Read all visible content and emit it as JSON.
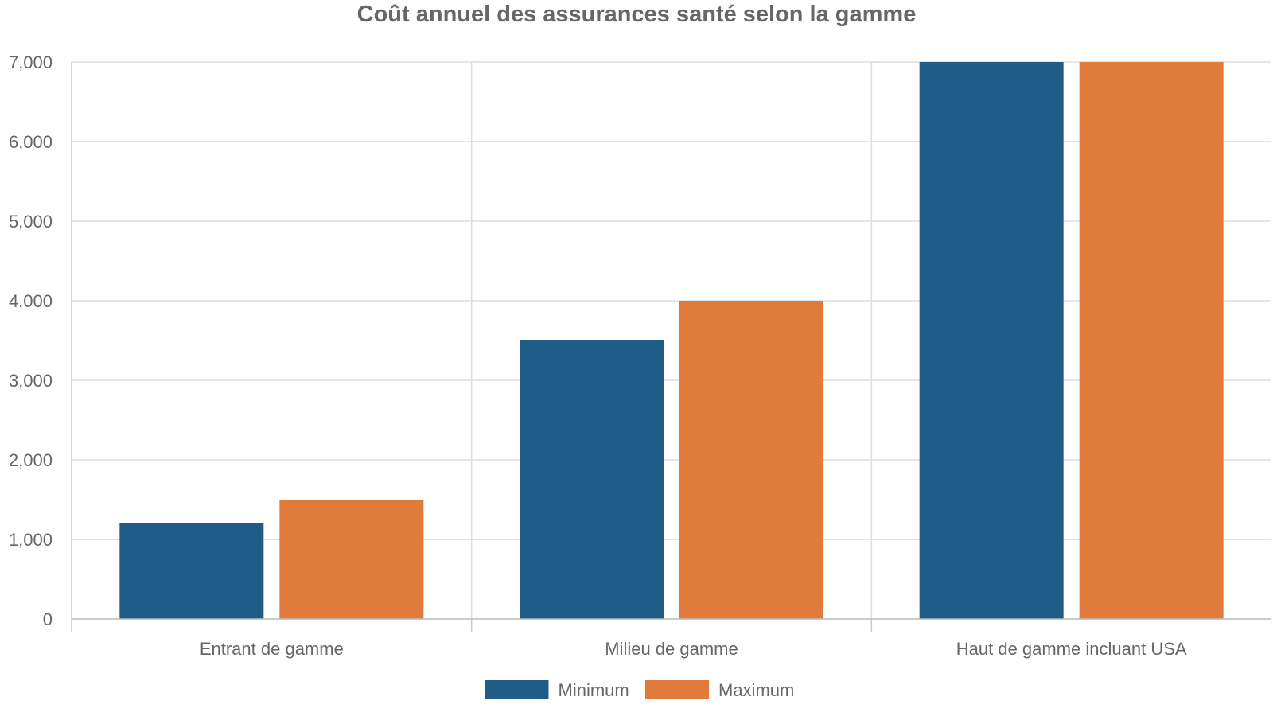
{
  "chart_data": {
    "type": "bar",
    "title": "Coût annuel des assurances santé selon la gamme",
    "xlabel": "",
    "ylabel": "",
    "categories": [
      "Entrant de gamme",
      "Milieu de gamme",
      "Haut de gamme incluant USA"
    ],
    "series": [
      {
        "name": "Minimum",
        "values": [
          1200,
          3500,
          7000
        ],
        "color": "#1f5c87"
      },
      {
        "name": "Maximum",
        "values": [
          1500,
          4000,
          7000
        ],
        "color": "#e07b3b"
      }
    ],
    "ylim": [
      0,
      7000
    ],
    "yticks": [
      0,
      1000,
      2000,
      3000,
      4000,
      5000,
      6000,
      7000
    ],
    "ytick_labels": [
      "0",
      "1,000",
      "2,000",
      "3,000",
      "4,000",
      "5,000",
      "6,000",
      "7,000"
    ],
    "grid": true,
    "legend_position": "bottom-center"
  }
}
